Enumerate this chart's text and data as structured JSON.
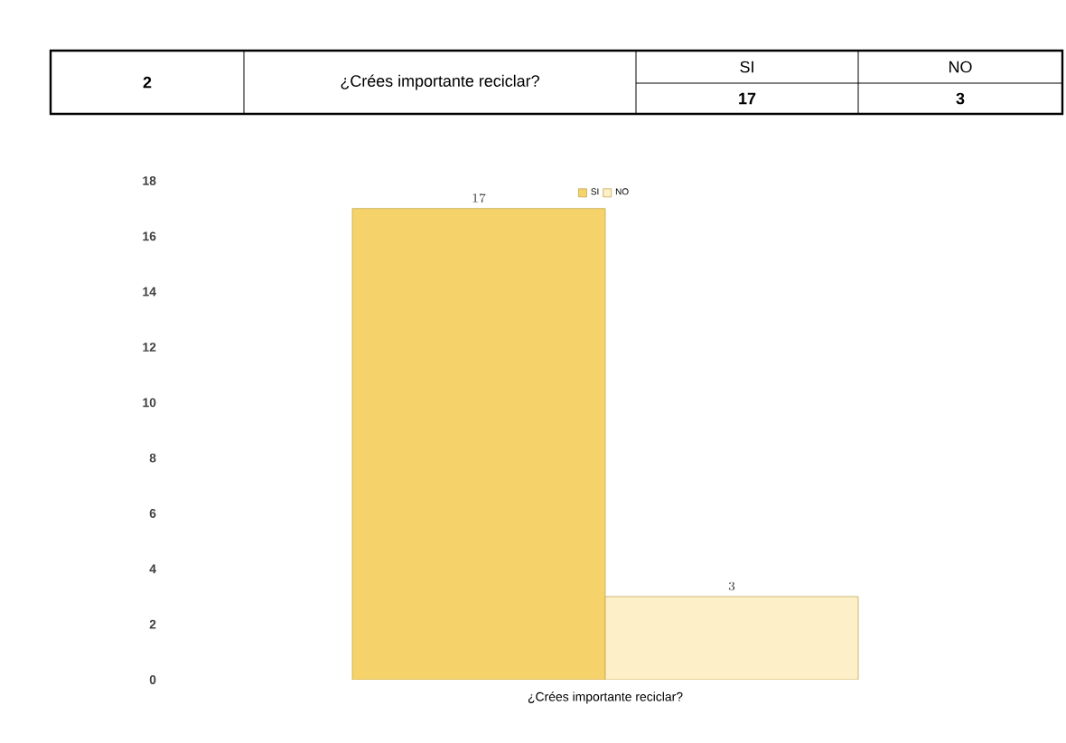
{
  "chart_data": {
    "type": "bar",
    "xlabel": "¿Crées importante reciclar?",
    "categories": [
      null
    ],
    "series": [
      {
        "name": "SI",
        "color": "#f5d36a",
        "values": [
          17
        ]
      },
      {
        "name": "NO",
        "color": "#fdefc8",
        "values": [
          3
        ]
      }
    ],
    "ylim": [
      0,
      18
    ],
    "yticks": [
      0,
      2,
      4,
      6,
      8,
      10,
      12,
      14,
      16,
      18
    ],
    "data_labels": true,
    "legend": "top",
    "annotations": [
      "2",
      "¿Crées importante reciclar?",
      "SI",
      "NO",
      "17",
      "3"
    ]
  }
}
